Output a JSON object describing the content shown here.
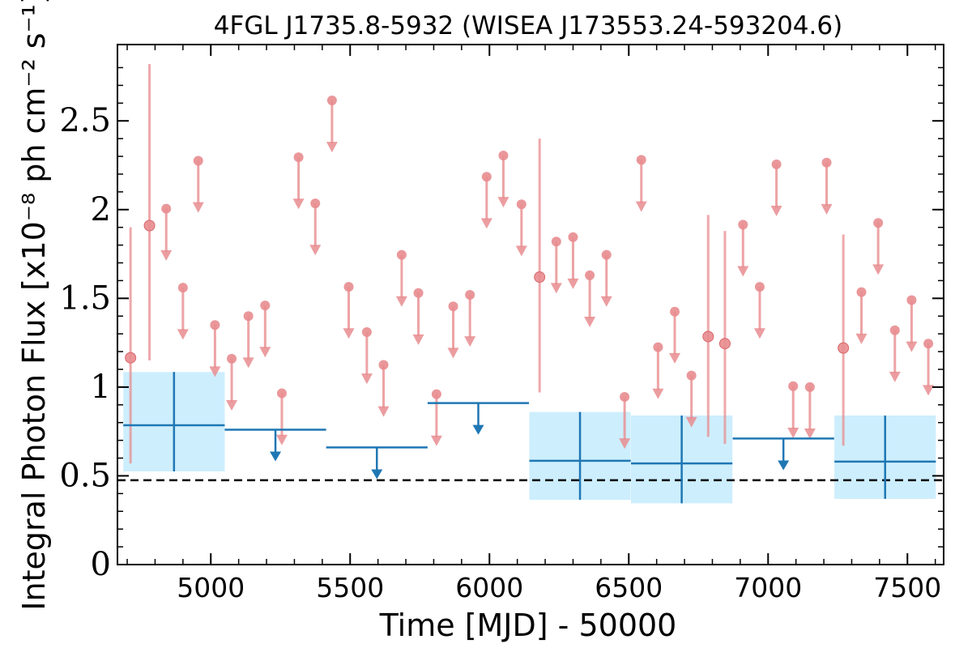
{
  "chart_data": {
    "type": "scatter",
    "title": "4FGL J1735.8-5932 (WISEA J173553.24-593204.6)",
    "xlabel": "Time [MJD] - 50000",
    "ylabel": "Integral Photon Flux [x10⁻⁸ ph cm⁻² s⁻¹]",
    "xlim": [
      4665,
      7630
    ],
    "ylim": [
      0,
      2.93
    ],
    "xticks": [
      5000,
      5500,
      6000,
      6500,
      7000,
      7500
    ],
    "xtick_labels": [
      "5000",
      "5500",
      "6000",
      "6500",
      "7000",
      "7500"
    ],
    "yticks": [
      0,
      0.5,
      1,
      1.5,
      2,
      2.5
    ],
    "ytick_labels": [
      "0",
      "0.5",
      "1",
      "1.5",
      "2",
      "2.5"
    ],
    "grid": false,
    "colors": {
      "short_bins": "#e88c8f",
      "long_bins": "#1f77b4",
      "long_bins_error_band": "#cdeefd",
      "reference_line": "#000000"
    },
    "reference_line": {
      "y": 0.475,
      "style": "dashed"
    },
    "series": [
      {
        "points": [
          {
            "x": 4712,
            "y": 1.165,
            "ylo": 0.57,
            "yhi": 1.9
          },
          {
            "x": 4780,
            "y": 1.91,
            "ylo": 1.15,
            "yhi": 2.82
          },
          {
            "x": 6180,
            "y": 1.62,
            "ylo": 0.97,
            "yhi": 2.4
          },
          {
            "x": 6785,
            "y": 1.285,
            "ylo": 0.72,
            "yhi": 1.97
          },
          {
            "x": 6845,
            "y": 1.245,
            "ylo": 0.68,
            "yhi": 1.88
          },
          {
            "x": 7270,
            "y": 1.22,
            "ylo": 0.67,
            "yhi": 1.86
          }
        ],
        "upper_limits": [
          {
            "x": 4840,
            "y": 2.005
          },
          {
            "x": 4900,
            "y": 1.56
          },
          {
            "x": 4955,
            "y": 2.275
          },
          {
            "x": 5015,
            "y": 1.35
          },
          {
            "x": 5075,
            "y": 1.16
          },
          {
            "x": 5135,
            "y": 1.4
          },
          {
            "x": 5195,
            "y": 1.46
          },
          {
            "x": 5255,
            "y": 0.965
          },
          {
            "x": 5315,
            "y": 2.295
          },
          {
            "x": 5375,
            "y": 2.035
          },
          {
            "x": 5435,
            "y": 2.615
          },
          {
            "x": 5495,
            "y": 1.565
          },
          {
            "x": 5560,
            "y": 1.31
          },
          {
            "x": 5620,
            "y": 1.125
          },
          {
            "x": 5685,
            "y": 1.745
          },
          {
            "x": 5745,
            "y": 1.53
          },
          {
            "x": 5810,
            "y": 0.96
          },
          {
            "x": 5870,
            "y": 1.455
          },
          {
            "x": 5930,
            "y": 1.52
          },
          {
            "x": 5990,
            "y": 2.185
          },
          {
            "x": 6050,
            "y": 2.305
          },
          {
            "x": 6115,
            "y": 2.03
          },
          {
            "x": 6240,
            "y": 1.82
          },
          {
            "x": 6300,
            "y": 1.845
          },
          {
            "x": 6360,
            "y": 1.63
          },
          {
            "x": 6420,
            "y": 1.745
          },
          {
            "x": 6485,
            "y": 0.945
          },
          {
            "x": 6545,
            "y": 2.28
          },
          {
            "x": 6605,
            "y": 1.225
          },
          {
            "x": 6665,
            "y": 1.425
          },
          {
            "x": 6725,
            "y": 1.065
          },
          {
            "x": 6910,
            "y": 1.915
          },
          {
            "x": 6970,
            "y": 1.565
          },
          {
            "x": 7030,
            "y": 2.255
          },
          {
            "x": 7090,
            "y": 1.005
          },
          {
            "x": 7150,
            "y": 1.0
          },
          {
            "x": 7210,
            "y": 2.265
          },
          {
            "x": 7335,
            "y": 1.535
          },
          {
            "x": 7395,
            "y": 1.925
          },
          {
            "x": 7455,
            "y": 1.32
          },
          {
            "x": 7515,
            "y": 1.49
          },
          {
            "x": 7575,
            "y": 1.245
          }
        ]
      },
      {
        "points": [
          {
            "x": 4868,
            "xlo": 4686,
            "xhi": 5050,
            "y": 0.785,
            "ylo": 0.525,
            "yhi": 1.085
          },
          {
            "x": 6325,
            "xlo": 6143,
            "xhi": 6507,
            "y": 0.585,
            "ylo": 0.365,
            "yhi": 0.86
          },
          {
            "x": 6690,
            "xlo": 6508,
            "xhi": 6872,
            "y": 0.57,
            "ylo": 0.345,
            "yhi": 0.84
          },
          {
            "x": 7420,
            "xlo": 7238,
            "xhi": 7602,
            "y": 0.58,
            "ylo": 0.37,
            "yhi": 0.84
          }
        ],
        "upper_limits": [
          {
            "x": 5232,
            "xlo": 5050,
            "xhi": 5414,
            "y": 0.76
          },
          {
            "x": 5596,
            "xlo": 5414,
            "xhi": 5778,
            "y": 0.66
          },
          {
            "x": 5960,
            "xlo": 5778,
            "xhi": 6142,
            "y": 0.91
          },
          {
            "x": 7055,
            "xlo": 6873,
            "xhi": 7237,
            "y": 0.71
          }
        ]
      }
    ]
  }
}
